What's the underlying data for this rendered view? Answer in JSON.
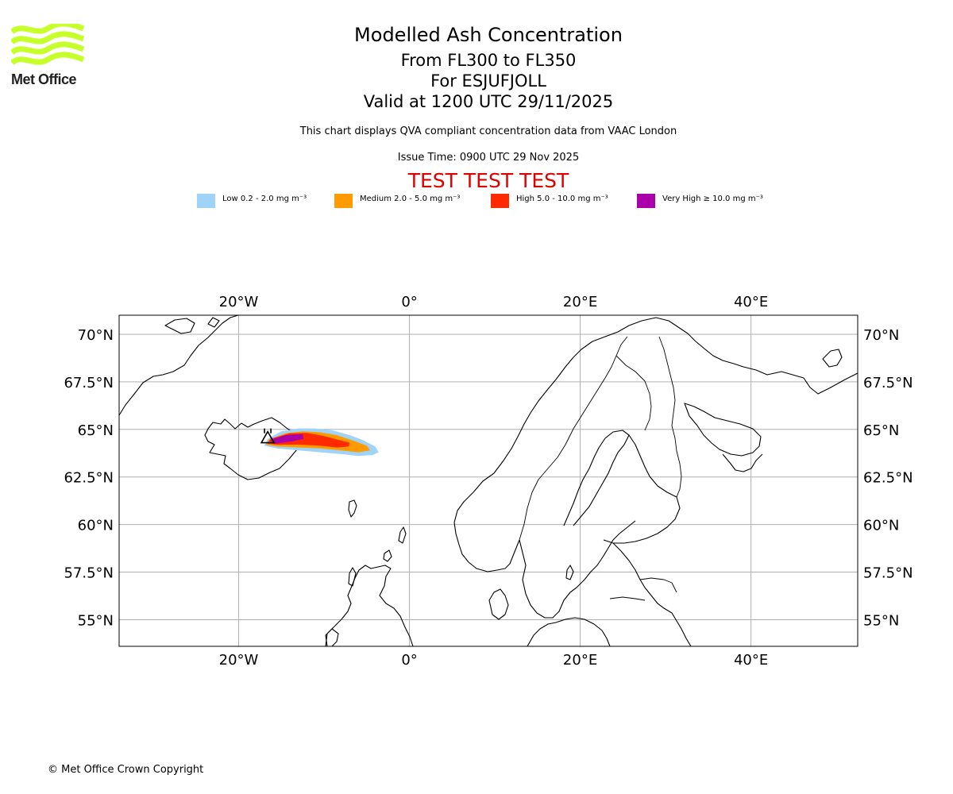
{
  "header": {
    "logo_text": "Met Office",
    "title": "Modelled Ash Concentration",
    "level_range": "From FL300 to FL350",
    "volcano": "For ESJUFJOLL",
    "valid_time": "Valid at 1200 UTC 29/11/2025",
    "subtitle": "This chart displays QVA compliant concentration data from VAAC London",
    "issue_time": "Issue Time: 0900 UTC 29 Nov 2025",
    "test_banner": "TEST TEST TEST"
  },
  "legend": [
    {
      "label": "Low 0.2 - 2.0 mg m⁻³",
      "color": "#a0d3f8"
    },
    {
      "label": "Medium 2.0 - 5.0 mg m⁻³",
      "color": "#ff9a00"
    },
    {
      "label": "High 5.0 - 10.0 mg m⁻³",
      "color": "#ff2a00"
    },
    {
      "label": "Very High ≥ 10.0 mg m⁻³",
      "color": "#aa00aa"
    }
  ],
  "map": {
    "lon_range": [
      -34,
      52.5
    ],
    "lat_range": [
      53.6,
      71
    ],
    "lon_ticks": [
      {
        "value": -20,
        "label": "20°W"
      },
      {
        "value": 0,
        "label": "0°"
      },
      {
        "value": 20,
        "label": "20°E"
      },
      {
        "value": 40,
        "label": "40°E"
      }
    ],
    "lat_ticks": [
      {
        "value": 70,
        "label": "70°N"
      },
      {
        "value": 67.5,
        "label": "67.5°N"
      },
      {
        "value": 65,
        "label": "65°N"
      },
      {
        "value": 62.5,
        "label": "62.5°N"
      },
      {
        "value": 60,
        "label": "60°N"
      },
      {
        "value": 57.5,
        "label": "57.5°N"
      },
      {
        "value": 55,
        "label": "55°N"
      }
    ],
    "volcano_location": {
      "lon": -16.6,
      "lat": 64.3
    },
    "ash_zones": [
      {
        "level": "low",
        "color": "#a0d3f8",
        "polygon": [
          [
            -16.6,
            64.5
          ],
          [
            -15,
            64.9
          ],
          [
            -13,
            65.05
          ],
          [
            -11,
            65.05
          ],
          [
            -9,
            64.95
          ],
          [
            -7,
            64.7
          ],
          [
            -5.5,
            64.45
          ],
          [
            -4,
            64.1
          ],
          [
            -3.6,
            63.8
          ],
          [
            -4.3,
            63.65
          ],
          [
            -6,
            63.6
          ],
          [
            -8,
            63.7
          ],
          [
            -10.5,
            63.8
          ],
          [
            -13,
            63.9
          ],
          [
            -15.5,
            64.0
          ],
          [
            -17,
            64.15
          ]
        ]
      },
      {
        "level": "medium",
        "color": "#ff9a00",
        "polygon": [
          [
            -16.5,
            64.45
          ],
          [
            -14.5,
            64.8
          ],
          [
            -12.5,
            64.9
          ],
          [
            -10.5,
            64.85
          ],
          [
            -8.5,
            64.7
          ],
          [
            -6.5,
            64.4
          ],
          [
            -5,
            64.15
          ],
          [
            -4.6,
            63.9
          ],
          [
            -6,
            63.8
          ],
          [
            -8,
            63.9
          ],
          [
            -10.5,
            64.0
          ],
          [
            -13,
            64.05
          ],
          [
            -15.5,
            64.1
          ],
          [
            -16.8,
            64.2
          ]
        ]
      },
      {
        "level": "high",
        "color": "#ff2a00",
        "polygon": [
          [
            -16.3,
            64.5
          ],
          [
            -14,
            64.8
          ],
          [
            -12,
            64.82
          ],
          [
            -10,
            64.65
          ],
          [
            -8.3,
            64.45
          ],
          [
            -7,
            64.3
          ],
          [
            -7.1,
            64.1
          ],
          [
            -8.5,
            64.05
          ],
          [
            -10.5,
            64.15
          ],
          [
            -13,
            64.2
          ],
          [
            -15.5,
            64.2
          ],
          [
            -16.6,
            64.25
          ]
        ]
      },
      {
        "level": "very_high",
        "color": "#aa00aa",
        "polygon": [
          [
            -16.3,
            64.45
          ],
          [
            -14.5,
            64.7
          ],
          [
            -12.5,
            64.75
          ],
          [
            -12.4,
            64.5
          ],
          [
            -14,
            64.35
          ],
          [
            -15.8,
            64.25
          ]
        ]
      }
    ]
  },
  "footer": {
    "copyright": "© Met Office Crown Copyright"
  }
}
